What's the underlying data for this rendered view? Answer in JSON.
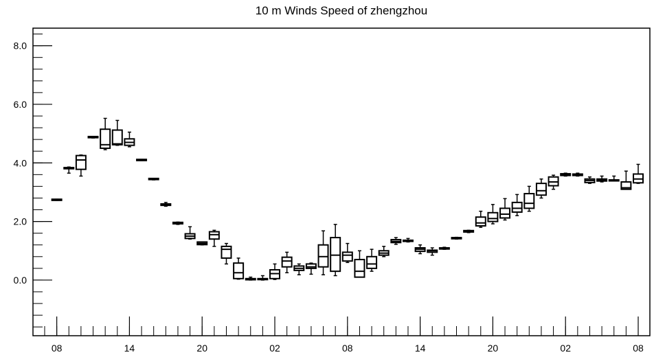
{
  "chart_data": {
    "type": "boxplot",
    "title": "10 m Winds Speed of zhengzhou",
    "xlabel": "",
    "ylabel": "",
    "ylim": [
      -1.9,
      8.6
    ],
    "yticks": [
      0.0,
      2.0,
      4.0,
      6.0,
      8.0
    ],
    "ytick_labels": [
      "0.0",
      "2.0",
      "4.0",
      "6.0",
      "8.0"
    ],
    "y_minor_step": 0.4,
    "x_range": [
      0,
      49
    ],
    "xticks": [
      {
        "x": 1,
        "label": "08"
      },
      {
        "x": 7,
        "label": "14"
      },
      {
        "x": 13,
        "label": "20"
      },
      {
        "x": 19,
        "label": "02"
      },
      {
        "x": 25,
        "label": "08"
      },
      {
        "x": 31,
        "label": "14"
      },
      {
        "x": 37,
        "label": "20"
      },
      {
        "x": 43,
        "label": "02"
      },
      {
        "x": 49,
        "label": "08"
      }
    ],
    "grid": false,
    "boxes": [
      {
        "x": 1,
        "min": 2.72,
        "q1": 2.72,
        "median": 2.74,
        "q3": 2.76,
        "max": 2.76
      },
      {
        "x": 2,
        "min": 3.65,
        "q1": 3.8,
        "median": 3.82,
        "q3": 3.84,
        "max": 3.86
      },
      {
        "x": 3,
        "min": 3.55,
        "q1": 3.78,
        "median": 4.1,
        "q3": 4.25,
        "max": 4.27
      },
      {
        "x": 4,
        "min": 4.85,
        "q1": 4.86,
        "median": 4.88,
        "q3": 4.9,
        "max": 4.9
      },
      {
        "x": 5,
        "min": 4.45,
        "q1": 4.5,
        "median": 4.62,
        "q3": 5.15,
        "max": 5.52
      },
      {
        "x": 6,
        "min": 4.6,
        "q1": 4.62,
        "median": 4.65,
        "q3": 5.12,
        "max": 5.45
      },
      {
        "x": 7,
        "min": 4.55,
        "q1": 4.6,
        "median": 4.7,
        "q3": 4.82,
        "max": 5.05
      },
      {
        "x": 8,
        "min": 4.08,
        "q1": 4.08,
        "median": 4.1,
        "q3": 4.12,
        "max": 4.12
      },
      {
        "x": 9,
        "min": 3.42,
        "q1": 3.43,
        "median": 3.45,
        "q3": 3.47,
        "max": 3.47
      },
      {
        "x": 10,
        "min": 2.52,
        "q1": 2.55,
        "median": 2.58,
        "q3": 2.6,
        "max": 2.65
      },
      {
        "x": 11,
        "min": 1.9,
        "q1": 1.92,
        "median": 1.95,
        "q3": 1.97,
        "max": 1.98
      },
      {
        "x": 12,
        "min": 1.4,
        "q1": 1.42,
        "median": 1.5,
        "q3": 1.58,
        "max": 1.82
      },
      {
        "x": 13,
        "min": 1.2,
        "q1": 1.21,
        "median": 1.25,
        "q3": 1.3,
        "max": 1.3
      },
      {
        "x": 14,
        "min": 1.15,
        "q1": 1.4,
        "median": 1.55,
        "q3": 1.65,
        "max": 1.7
      },
      {
        "x": 15,
        "min": 0.55,
        "q1": 0.75,
        "median": 1.05,
        "q3": 1.15,
        "max": 1.25
      },
      {
        "x": 16,
        "min": 0.03,
        "q1": 0.05,
        "median": 0.25,
        "q3": 0.58,
        "max": 0.75
      },
      {
        "x": 17,
        "min": 0.0,
        "q1": 0.01,
        "median": 0.02,
        "q3": 0.05,
        "max": 0.1
      },
      {
        "x": 18,
        "min": 0.0,
        "q1": 0.02,
        "median": 0.04,
        "q3": 0.05,
        "max": 0.15
      },
      {
        "x": 19,
        "min": 0.02,
        "q1": 0.05,
        "median": 0.22,
        "q3": 0.35,
        "max": 0.55
      },
      {
        "x": 20,
        "min": 0.25,
        "q1": 0.45,
        "median": 0.65,
        "q3": 0.78,
        "max": 0.95
      },
      {
        "x": 21,
        "min": 0.18,
        "q1": 0.33,
        "median": 0.4,
        "q3": 0.48,
        "max": 0.55
      },
      {
        "x": 22,
        "min": 0.2,
        "q1": 0.4,
        "median": 0.45,
        "q3": 0.55,
        "max": 0.58
      },
      {
        "x": 23,
        "min": 0.18,
        "q1": 0.45,
        "median": 0.8,
        "q3": 1.2,
        "max": 1.68
      },
      {
        "x": 24,
        "min": 0.15,
        "q1": 0.3,
        "median": 0.85,
        "q3": 1.45,
        "max": 1.9
      },
      {
        "x": 25,
        "min": 0.6,
        "q1": 0.65,
        "median": 0.85,
        "q3": 0.95,
        "max": 1.25
      },
      {
        "x": 26,
        "min": 0.1,
        "q1": 0.1,
        "median": 0.3,
        "q3": 0.7,
        "max": 1.0
      },
      {
        "x": 27,
        "min": 0.3,
        "q1": 0.4,
        "median": 0.55,
        "q3": 0.8,
        "max": 1.05
      },
      {
        "x": 28,
        "min": 0.8,
        "q1": 0.85,
        "median": 0.92,
        "q3": 1.0,
        "max": 1.15
      },
      {
        "x": 29,
        "min": 1.22,
        "q1": 1.28,
        "median": 1.32,
        "q3": 1.38,
        "max": 1.45
      },
      {
        "x": 30,
        "min": 1.3,
        "q1": 1.32,
        "median": 1.35,
        "q3": 1.36,
        "max": 1.42
      },
      {
        "x": 31,
        "min": 0.9,
        "q1": 0.98,
        "median": 1.05,
        "q3": 1.1,
        "max": 1.2
      },
      {
        "x": 32,
        "min": 0.85,
        "q1": 0.95,
        "median": 1.0,
        "q3": 1.02,
        "max": 1.1
      },
      {
        "x": 33,
        "min": 1.05,
        "q1": 1.06,
        "median": 1.08,
        "q3": 1.1,
        "max": 1.12
      },
      {
        "x": 34,
        "min": 1.4,
        "q1": 1.41,
        "median": 1.43,
        "q3": 1.45,
        "max": 1.46
      },
      {
        "x": 35,
        "min": 1.62,
        "q1": 1.64,
        "median": 1.67,
        "q3": 1.69,
        "max": 1.7
      },
      {
        "x": 36,
        "min": 1.8,
        "q1": 1.85,
        "median": 1.95,
        "q3": 2.15,
        "max": 2.35
      },
      {
        "x": 37,
        "min": 1.92,
        "q1": 2.0,
        "median": 2.1,
        "q3": 2.3,
        "max": 2.58
      },
      {
        "x": 38,
        "min": 2.05,
        "q1": 2.12,
        "median": 2.25,
        "q3": 2.45,
        "max": 2.78
      },
      {
        "x": 39,
        "min": 2.2,
        "q1": 2.32,
        "median": 2.45,
        "q3": 2.65,
        "max": 2.92
      },
      {
        "x": 40,
        "min": 2.35,
        "q1": 2.45,
        "median": 2.62,
        "q3": 2.95,
        "max": 3.2
      },
      {
        "x": 41,
        "min": 2.8,
        "q1": 2.9,
        "median": 3.05,
        "q3": 3.3,
        "max": 3.45
      },
      {
        "x": 42,
        "min": 3.1,
        "q1": 3.22,
        "median": 3.35,
        "q3": 3.52,
        "max": 3.58
      },
      {
        "x": 43,
        "min": 3.55,
        "q1": 3.57,
        "median": 3.6,
        "q3": 3.63,
        "max": 3.65
      },
      {
        "x": 44,
        "min": 3.55,
        "q1": 3.57,
        "median": 3.6,
        "q3": 3.62,
        "max": 3.65
      },
      {
        "x": 45,
        "min": 3.3,
        "q1": 3.33,
        "median": 3.4,
        "q3": 3.45,
        "max": 3.52
      },
      {
        "x": 46,
        "min": 3.35,
        "q1": 3.38,
        "median": 3.42,
        "q3": 3.45,
        "max": 3.55
      },
      {
        "x": 47,
        "min": 3.38,
        "q1": 3.39,
        "median": 3.4,
        "q3": 3.42,
        "max": 3.55
      },
      {
        "x": 48,
        "min": 3.1,
        "q1": 3.1,
        "median": 3.15,
        "q3": 3.35,
        "max": 3.72
      },
      {
        "x": 49,
        "min": 3.3,
        "q1": 3.32,
        "median": 3.45,
        "q3": 3.62,
        "max": 3.95
      }
    ]
  }
}
